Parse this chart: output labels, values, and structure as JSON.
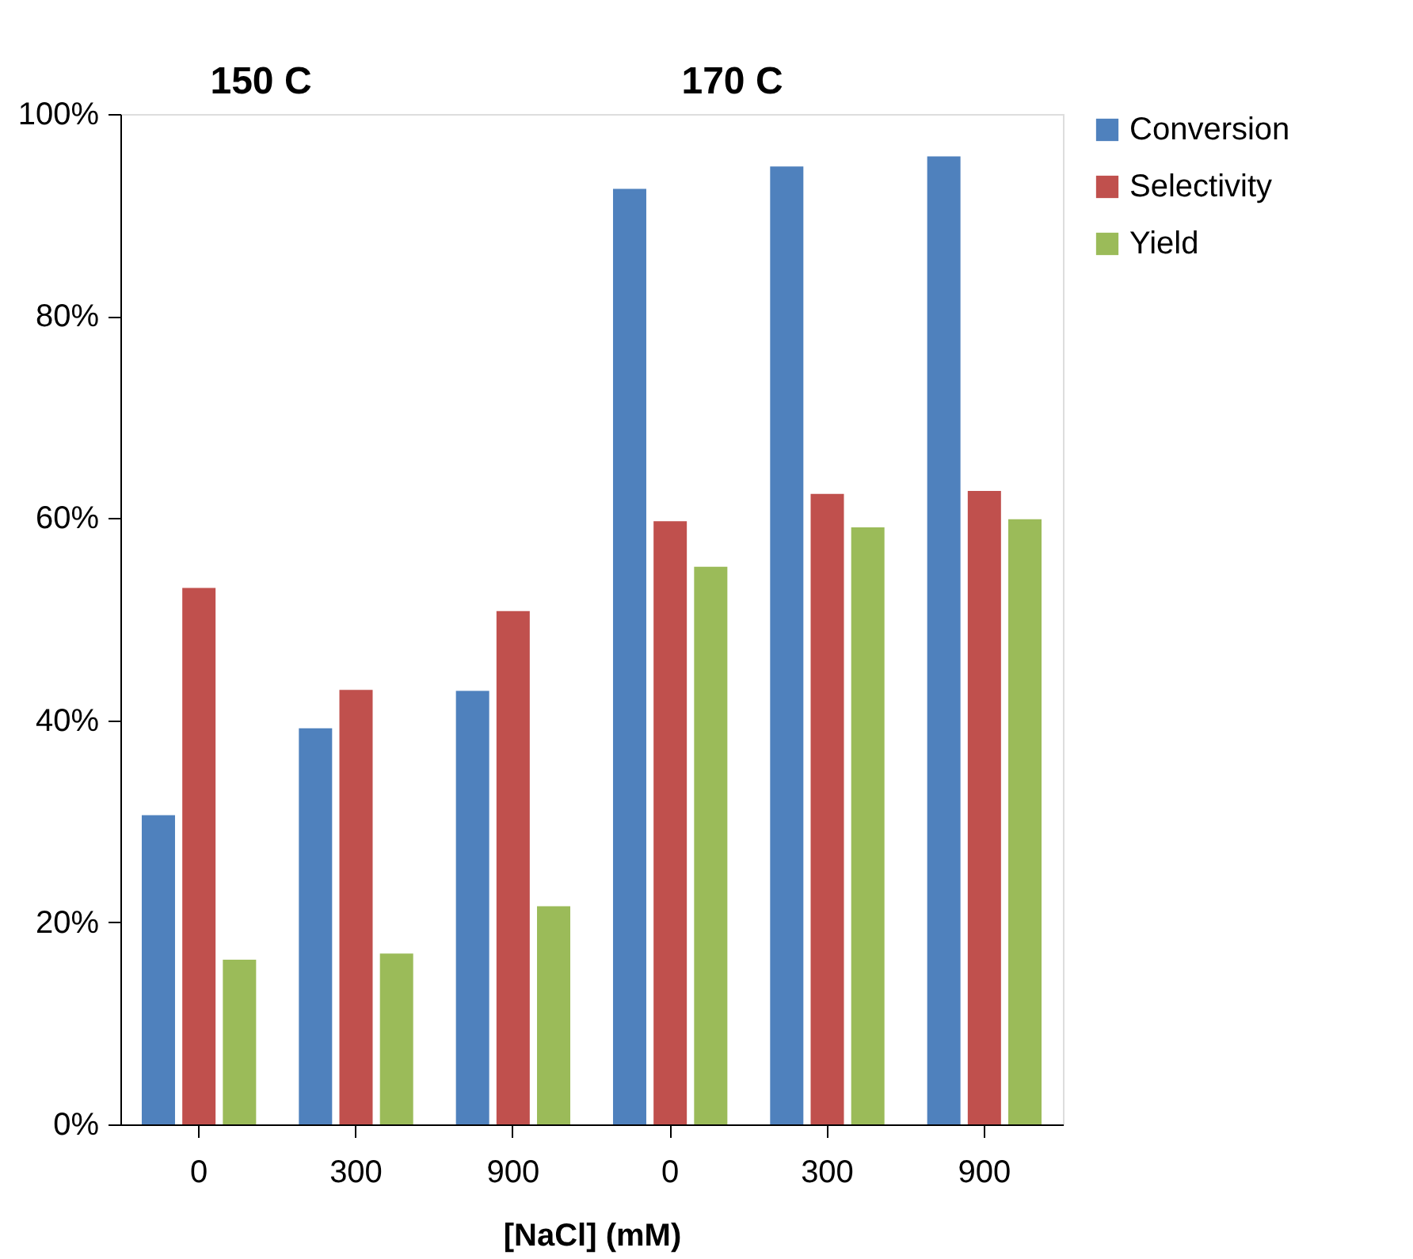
{
  "chart_data": {
    "type": "bar",
    "xlabel": "[NaCl] (mM)",
    "categories": [
      "0",
      "300",
      "900",
      "0",
      "300",
      "900"
    ],
    "series": [
      {
        "name": "Conversion",
        "color": "#4f81bd",
        "values": [
          30.6,
          39.2,
          42.9,
          92.6,
          94.8,
          95.8
        ]
      },
      {
        "name": "Selectivity",
        "color": "#c0504d",
        "values": [
          53.1,
          43.0,
          50.8,
          59.7,
          62.4,
          62.7
        ]
      },
      {
        "name": "Yield",
        "color": "#9bbb59",
        "values": [
          16.3,
          16.9,
          21.6,
          55.2,
          59.1,
          59.9
        ]
      }
    ],
    "annotations": [
      "150 C",
      "170 C"
    ],
    "ylim": [
      0,
      100
    ],
    "yticks": [
      {
        "value": 0,
        "label": "0%"
      },
      {
        "value": 20,
        "label": "20%"
      },
      {
        "value": 40,
        "label": "40%"
      },
      {
        "value": 60,
        "label": "60%"
      },
      {
        "value": 80,
        "label": "80%"
      },
      {
        "value": 100,
        "label": "100%"
      }
    ],
    "grid": false,
    "legend": "right"
  }
}
